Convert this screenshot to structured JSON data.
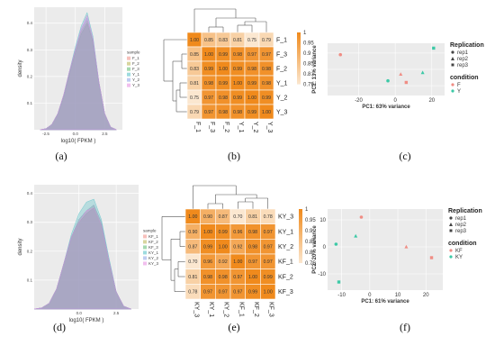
{
  "captions": [
    "(a)",
    "(b)",
    "(c)",
    "(d)",
    "(e)",
    "(f)"
  ],
  "chart_data": [
    {
      "panel": "a",
      "type": "area",
      "xlabel": "log10( FPKM )",
      "ylabel": "density",
      "yticks": [
        "0.1",
        "0.2",
        "0.3",
        "0.4"
      ],
      "xticks": [
        "-2.5",
        "0.0",
        "2.5"
      ],
      "legend_title": "sample",
      "legend": [
        "F_1",
        "F_2",
        "F_3",
        "Y_1",
        "Y_2",
        "Y_3"
      ],
      "colors": [
        "#f08d84",
        "#b8b34f",
        "#5bb96e",
        "#4cbdc4",
        "#8aa3e6",
        "#e58ae0"
      ],
      "x": [
        -3.0,
        -2.5,
        -2.0,
        -1.5,
        -1.0,
        -0.5,
        0.0,
        0.5,
        1.0,
        1.5,
        2.0,
        2.5,
        3.0,
        3.5
      ],
      "series": [
        {
          "values": [
            0.0,
            0.004,
            0.02,
            0.06,
            0.13,
            0.21,
            0.29,
            0.36,
            0.4,
            0.33,
            0.18,
            0.06,
            0.01,
            0.0
          ]
        },
        {
          "values": [
            0.0,
            0.004,
            0.02,
            0.06,
            0.13,
            0.22,
            0.3,
            0.37,
            0.41,
            0.34,
            0.18,
            0.06,
            0.01,
            0.0
          ]
        },
        {
          "values": [
            0.0,
            0.004,
            0.02,
            0.06,
            0.12,
            0.21,
            0.29,
            0.36,
            0.4,
            0.33,
            0.17,
            0.06,
            0.01,
            0.0
          ]
        },
        {
          "values": [
            0.0,
            0.004,
            0.02,
            0.06,
            0.13,
            0.22,
            0.31,
            0.39,
            0.44,
            0.35,
            0.18,
            0.06,
            0.01,
            0.0
          ]
        },
        {
          "values": [
            0.0,
            0.004,
            0.02,
            0.06,
            0.13,
            0.22,
            0.3,
            0.38,
            0.42,
            0.34,
            0.18,
            0.06,
            0.01,
            0.0
          ]
        },
        {
          "values": [
            0.0,
            0.004,
            0.02,
            0.06,
            0.13,
            0.22,
            0.3,
            0.38,
            0.43,
            0.34,
            0.18,
            0.06,
            0.01,
            0.0
          ]
        }
      ],
      "xlim": [
        -3.5,
        4.0
      ],
      "ylim": [
        0,
        0.46
      ]
    },
    {
      "panel": "b",
      "type": "heatmap",
      "rows": [
        "F_1",
        "F_3",
        "F_2",
        "Y_1",
        "Y_2",
        "Y_3"
      ],
      "cols": [
        "F_1",
        "F_3",
        "F_2",
        "Y_1",
        "Y_2",
        "Y_3"
      ],
      "values": [
        [
          "1.00",
          "0.85",
          "0.83",
          "0.81",
          "0.75",
          "0.79"
        ],
        [
          "0.85",
          "1.00",
          "0.99",
          "0.98",
          "0.97",
          "0.97"
        ],
        [
          "0.83",
          "0.99",
          "1.00",
          "0.99",
          "0.98",
          "0.98"
        ],
        [
          "0.81",
          "0.98",
          "0.99",
          "1.00",
          "0.99",
          "0.98"
        ],
        [
          "0.75",
          "0.97",
          "0.98",
          "0.99",
          "1.00",
          "0.99"
        ],
        [
          "0.79",
          "0.97",
          "0.98",
          "0.98",
          "0.99",
          "1.00"
        ]
      ],
      "legend_ticks": [
        "1",
        "0.95",
        "0.9",
        "0.85",
        "0.8",
        "0.75"
      ],
      "color_high": "#f08a1c",
      "color_low": "#fbe7d0"
    },
    {
      "panel": "c",
      "type": "scatter",
      "xlabel": "PC1: 63% variance",
      "ylabel": "PC2: 13% variance",
      "xticks": [
        "-20",
        "0",
        "20"
      ],
      "xtick_values": [
        -20,
        0,
        20
      ],
      "xlim": [
        -37,
        27
      ],
      "ylim": [
        -8,
        8
      ],
      "legend_replication_title": "Replication",
      "legend_replication": [
        "rep1",
        "rep2",
        "rep3"
      ],
      "legend_condition_title": "condition",
      "legend_condition": [
        "F",
        "Y"
      ],
      "condition_colors": [
        "#f08d84",
        "#3cc9a6"
      ],
      "points": [
        {
          "x": -30,
          "y": 4.5,
          "condition": 0,
          "rep": 0
        },
        {
          "x": 3,
          "y": -1.5,
          "condition": 0,
          "rep": 1
        },
        {
          "x": 6,
          "y": -4.0,
          "condition": 0,
          "rep": 2
        },
        {
          "x": -4,
          "y": -3.5,
          "condition": 1,
          "rep": 0
        },
        {
          "x": 15,
          "y": -1.0,
          "condition": 1,
          "rep": 1
        },
        {
          "x": 21,
          "y": 6.5,
          "condition": 1,
          "rep": 2
        }
      ]
    },
    {
      "panel": "d",
      "type": "area",
      "xlabel": "log10( FPKM )",
      "ylabel": "density",
      "yticks": [
        "0.1",
        "0.2",
        "0.3",
        "0.4"
      ],
      "xticks": [
        "0.0",
        "2.5"
      ],
      "legend_title": "sample",
      "legend": [
        "KF_1",
        "KF_2",
        "KF_3",
        "KY_1",
        "KY_2",
        "KY_3"
      ],
      "colors": [
        "#f08d84",
        "#b8b34f",
        "#5bb96e",
        "#4cbdc4",
        "#8aa3e6",
        "#e58ae0"
      ],
      "x": [
        -3.0,
        -2.5,
        -2.0,
        -1.5,
        -1.0,
        -0.5,
        0.0,
        0.5,
        1.0,
        1.5,
        2.0,
        2.5,
        3.0,
        3.5
      ],
      "series": [
        {
          "values": [
            0.0,
            0.004,
            0.02,
            0.07,
            0.16,
            0.25,
            0.3,
            0.33,
            0.35,
            0.29,
            0.17,
            0.06,
            0.01,
            0.0
          ]
        },
        {
          "values": [
            0.0,
            0.004,
            0.02,
            0.07,
            0.16,
            0.25,
            0.31,
            0.34,
            0.36,
            0.3,
            0.17,
            0.06,
            0.01,
            0.0
          ]
        },
        {
          "values": [
            0.0,
            0.004,
            0.02,
            0.07,
            0.16,
            0.25,
            0.3,
            0.33,
            0.35,
            0.29,
            0.17,
            0.06,
            0.01,
            0.0
          ]
        },
        {
          "values": [
            0.0,
            0.004,
            0.02,
            0.07,
            0.16,
            0.26,
            0.33,
            0.37,
            0.38,
            0.31,
            0.18,
            0.06,
            0.01,
            0.0
          ]
        },
        {
          "values": [
            0.0,
            0.004,
            0.02,
            0.07,
            0.16,
            0.25,
            0.31,
            0.34,
            0.36,
            0.3,
            0.17,
            0.06,
            0.01,
            0.0
          ]
        },
        {
          "values": [
            0.0,
            0.004,
            0.02,
            0.07,
            0.16,
            0.25,
            0.3,
            0.34,
            0.35,
            0.29,
            0.17,
            0.06,
            0.01,
            0.0
          ]
        }
      ],
      "xlim": [
        -3.0,
        4.0
      ],
      "ylim": [
        0,
        0.43
      ]
    },
    {
      "panel": "e",
      "type": "heatmap",
      "rows": [
        "KY_3",
        "KY_1",
        "KY_2",
        "KF_1",
        "KF_2",
        "KF_3"
      ],
      "cols": [
        "KY_3",
        "KY_1",
        "KY_2",
        "KF_1",
        "KF_2",
        "KF_3"
      ],
      "values": [
        [
          "1.00",
          "0.90",
          "0.87",
          "0.70",
          "0.81",
          "0.78"
        ],
        [
          "0.90",
          "1.00",
          "0.99",
          "0.96",
          "0.98",
          "0.97"
        ],
        [
          "0.87",
          "0.99",
          "1.00",
          "0.92",
          "0.98",
          "0.97"
        ],
        [
          "0.70",
          "0.96",
          "0.92",
          "1.00",
          "0.97",
          "0.97"
        ],
        [
          "0.81",
          "0.98",
          "0.98",
          "0.97",
          "1.00",
          "0.99"
        ],
        [
          "0.78",
          "0.97",
          "0.97",
          "0.97",
          "0.99",
          "1.00"
        ]
      ],
      "legend_ticks": [
        "1",
        "0.95",
        "0.9",
        "0.85",
        "0.8",
        "0.75"
      ],
      "color_high": "#f08a1c",
      "color_low": "#fbe7d0"
    },
    {
      "panel": "f",
      "type": "scatter",
      "xlabel": "PC1: 61% variance",
      "ylabel": "PC2: 20% variance",
      "xticks": [
        "-10",
        "0",
        "10",
        "20"
      ],
      "xtick_values": [
        -10,
        0,
        10,
        20
      ],
      "yticks": [
        "10",
        "0",
        "-10"
      ],
      "ytick_values": [
        10,
        0,
        -10
      ],
      "xlim": [
        -15,
        26
      ],
      "ylim": [
        -16,
        14
      ],
      "legend_replication_title": "Replication",
      "legend_replication": [
        "rep1",
        "rep2",
        "rep3"
      ],
      "legend_condition_title": "condition",
      "legend_condition": [
        "KF",
        "KY"
      ],
      "condition_colors": [
        "#f08d84",
        "#3cc9a6"
      ],
      "points": [
        {
          "x": -3,
          "y": 11,
          "condition": 0,
          "rep": 0
        },
        {
          "x": 13,
          "y": 0,
          "condition": 0,
          "rep": 1
        },
        {
          "x": 22,
          "y": -4,
          "condition": 0,
          "rep": 2
        },
        {
          "x": -12,
          "y": 1,
          "condition": 1,
          "rep": 0
        },
        {
          "x": -5,
          "y": 4,
          "condition": 1,
          "rep": 1
        },
        {
          "x": -11,
          "y": -13,
          "condition": 1,
          "rep": 2
        }
      ]
    }
  ]
}
